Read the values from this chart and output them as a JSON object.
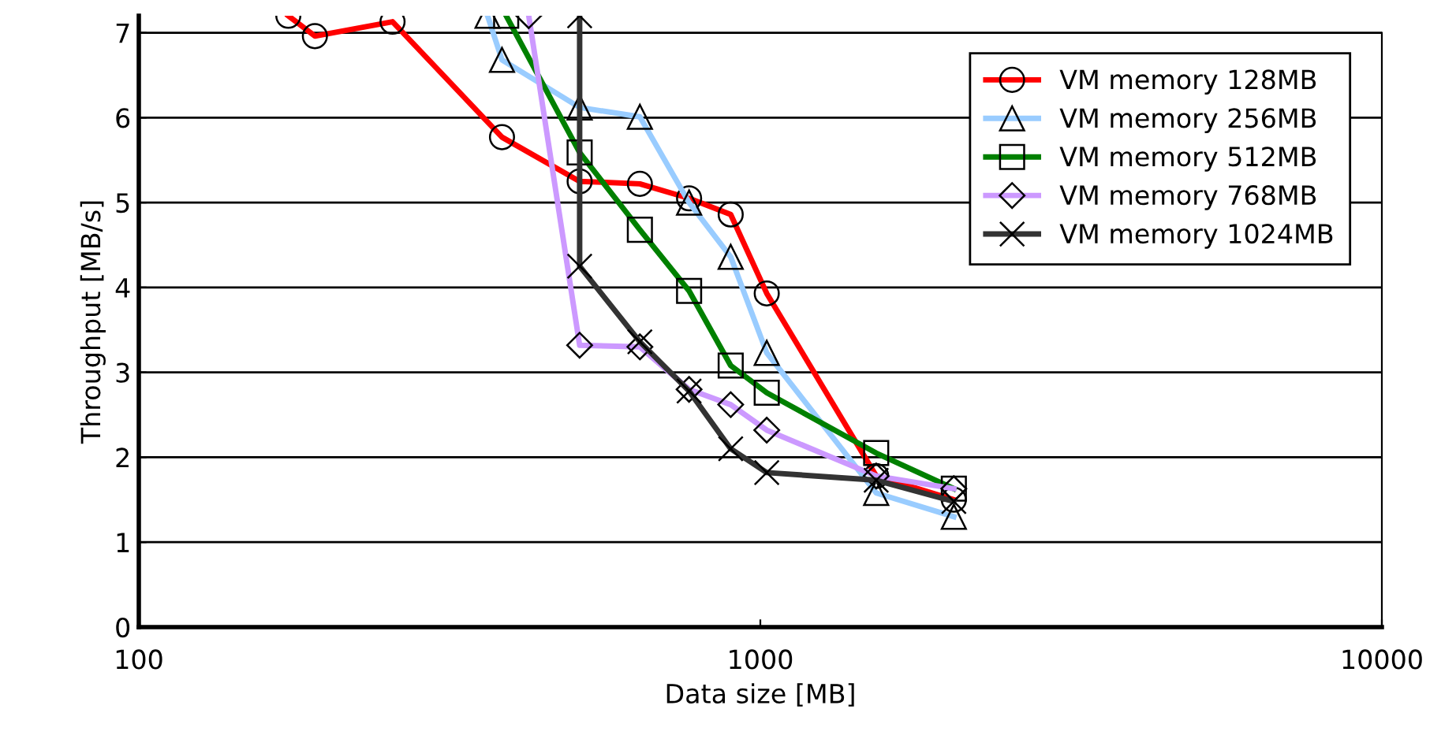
{
  "chart_data": {
    "type": "line",
    "xlabel": "Data size [MB]",
    "ylabel": "Throughput [MB/s]",
    "log": "x",
    "xlim": [
      100,
      10000
    ],
    "xticks": [
      100,
      1000,
      10000
    ],
    "ylim": [
      0,
      7.2
    ],
    "yticks": [
      0,
      1,
      2,
      3,
      4,
      5,
      6,
      7
    ],
    "grid": "y",
    "legend": "top right",
    "series": [
      {
        "name": "VM memory 128MB",
        "color": "#ff0000",
        "marker": "circle",
        "x": [
          174,
          192,
          256,
          384,
          512,
          640,
          768,
          896,
          1024,
          1536,
          2048
        ],
        "values": [
          7.2,
          6.96,
          7.13,
          5.77,
          5.25,
          5.22,
          5.05,
          4.86,
          3.93,
          1.78,
          1.5
        ]
      },
      {
        "name": "VM memory 256MB",
        "color": "#99ccff",
        "marker": "triangle",
        "x": [
          364,
          384,
          512,
          640,
          768,
          896,
          1024,
          1536,
          2048
        ],
        "values": [
          7.2,
          6.68,
          6.12,
          6.01,
          5.0,
          4.36,
          3.23,
          1.58,
          1.3
        ]
      },
      {
        "name": "VM memory 512MB",
        "color": "#008000",
        "marker": "square",
        "x": [
          390,
          512,
          640,
          768,
          896,
          1024,
          1536,
          2048
        ],
        "values": [
          7.2,
          5.59,
          4.68,
          3.96,
          3.08,
          2.76,
          2.05,
          1.63
        ]
      },
      {
        "name": "VM memory 768MB",
        "color": "#cc99ff",
        "marker": "diamond",
        "x": [
          424,
          512,
          640,
          768,
          896,
          1024,
          1536,
          2048
        ],
        "values": [
          7.2,
          3.32,
          3.3,
          2.8,
          2.62,
          2.32,
          1.78,
          1.63
        ]
      },
      {
        "name": "VM memory 1024MB",
        "color": "#333333",
        "marker": "cross",
        "x": [
          512,
          512,
          640,
          768,
          896,
          1024,
          1536,
          2048
        ],
        "values": [
          7.2,
          4.25,
          3.36,
          2.78,
          2.1,
          1.82,
          1.73,
          1.48
        ]
      }
    ]
  }
}
